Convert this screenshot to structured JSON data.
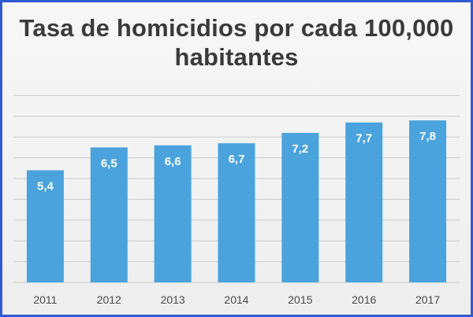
{
  "chart_data": {
    "type": "bar",
    "title_lines": [
      "Tasa de homicidios por cada 100,000",
      "habitantes"
    ],
    "categories": [
      "2011",
      "2012",
      "2013",
      "2014",
      "2015",
      "2016",
      "2017"
    ],
    "values": [
      5.4,
      6.5,
      6.6,
      6.7,
      7.2,
      7.7,
      7.8
    ],
    "data_labels": [
      "5,4",
      "6,5",
      "6,6",
      "6,7",
      "7,2",
      "7,7",
      "7,8"
    ],
    "ylim": [
      0,
      9
    ],
    "y_gridlines": [
      1,
      2,
      3,
      4,
      5,
      6,
      7,
      8,
      9
    ],
    "grid": true,
    "legend": "none",
    "xlabel": "",
    "ylabel": "",
    "bar_color": "#4aa3dd"
  }
}
